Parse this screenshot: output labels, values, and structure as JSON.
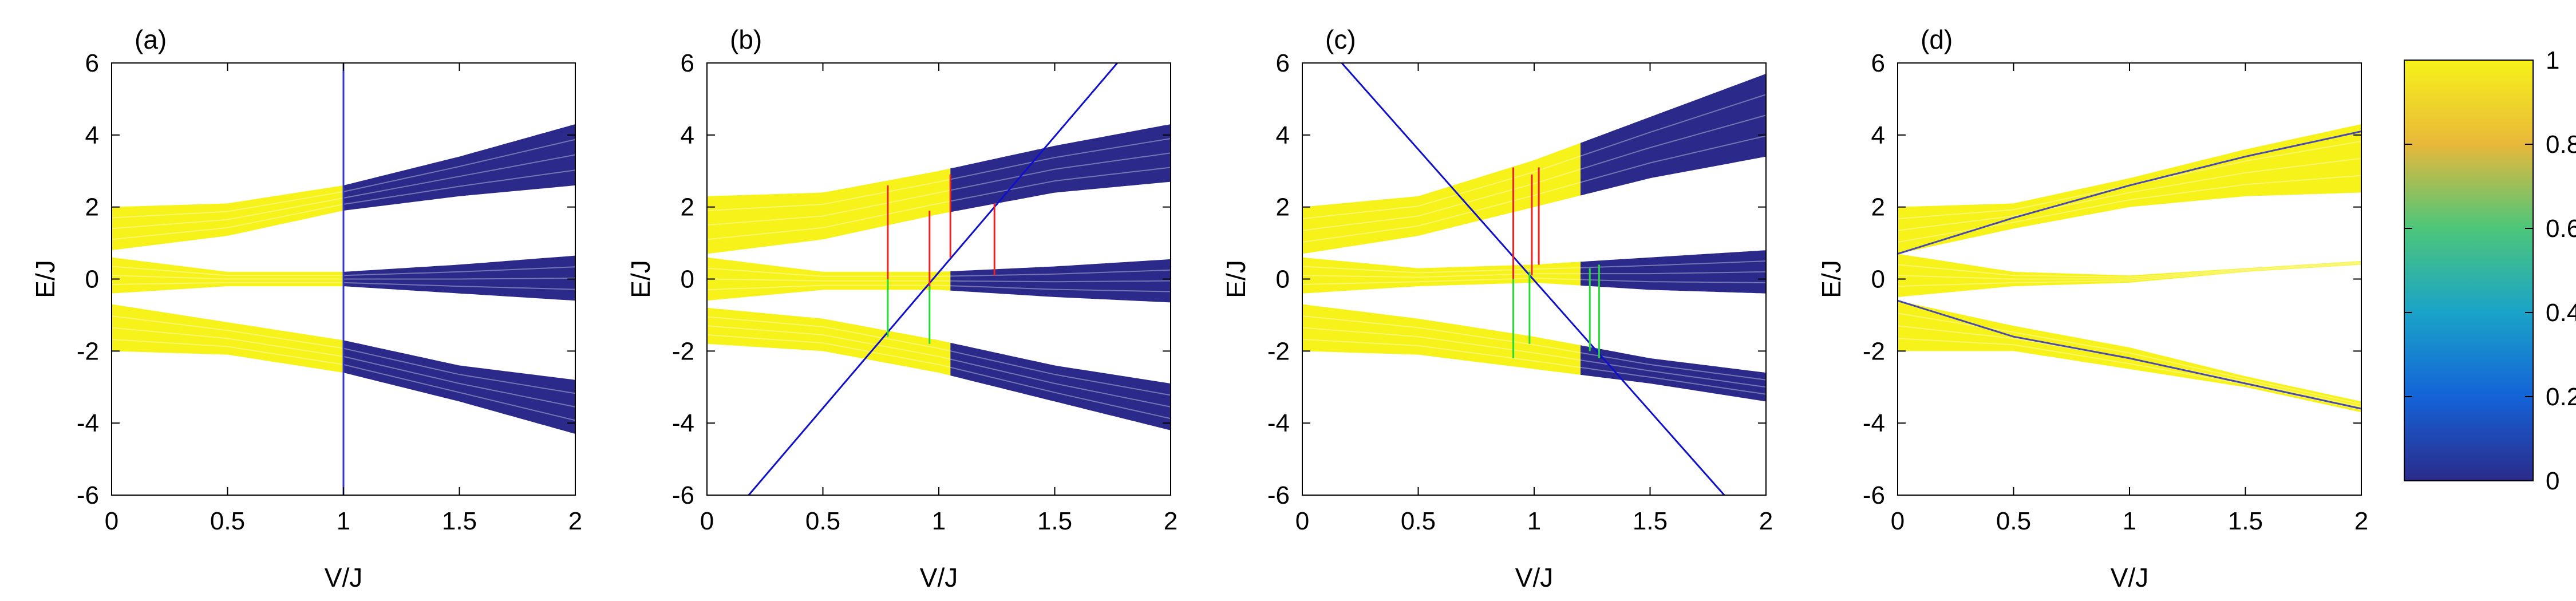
{
  "chart_data": {
    "type": "line",
    "description_units": "x in V/J, y in E/J, color = band fraction (0–1)",
    "xlabel": "V/J",
    "ylabel": "E/J",
    "xlim": [
      0,
      2
    ],
    "ylim": [
      -6,
      6
    ],
    "x_ticks": [
      "0",
      "0.5",
      "1",
      "1.5",
      "2"
    ],
    "y_ticks": [
      "-6",
      "-4",
      "-2",
      "0",
      "2",
      "4",
      "6"
    ],
    "x_tick_values": [
      0,
      0.5,
      1,
      1.5,
      2
    ],
    "y_tick_values": [
      -6,
      -4,
      -2,
      0,
      2,
      4,
      6
    ],
    "colorbar": {
      "ticks": [
        "0",
        "0.2",
        "0.4",
        "0.6",
        "0.8",
        "1"
      ],
      "tick_values": [
        0,
        0.2,
        0.4,
        0.6,
        0.8,
        1
      ],
      "range": [
        0,
        1
      ],
      "colormap": [
        "#2b2a8a",
        "#1463d8",
        "#1aa3c8",
        "#4cc67a",
        "#e8b83a",
        "#f6f21a"
      ]
    },
    "panels": [
      {
        "label": "(a)",
        "bands": [
          {
            "v": [
              0,
              0.5,
              1,
              1.5,
              2
            ],
            "upper": [
              2.0,
              2.1,
              2.6,
              3.4,
              4.3
            ],
            "lower": [
              0.8,
              1.2,
              1.9,
              2.3,
              2.6
            ]
          },
          {
            "v": [
              0,
              0.5,
              1,
              1.5,
              2
            ],
            "upper": [
              0.6,
              0.2,
              0.2,
              0.4,
              0.65
            ],
            "lower": [
              -0.4,
              -0.2,
              -0.2,
              -0.4,
              -0.6
            ]
          },
          {
            "v": [
              0,
              0.5,
              1,
              1.5,
              2
            ],
            "upper": [
              -0.7,
              -1.2,
              -1.7,
              -2.4,
              -2.8
            ],
            "lower": [
              -2.0,
              -2.1,
              -2.6,
              -3.4,
              -4.3
            ]
          }
        ],
        "yellow_until": 1.0,
        "vertical_lines": [
          {
            "x": 1.0,
            "color": "#3434c8"
          }
        ],
        "guide_lines": [],
        "red_segments": [],
        "green_segments": []
      },
      {
        "label": "(b)",
        "bands": [
          {
            "v": [
              0,
              0.5,
              1,
              1.5,
              2
            ],
            "upper": [
              2.3,
              2.4,
              3.0,
              3.7,
              4.3
            ],
            "lower": [
              0.7,
              1.1,
              1.8,
              2.4,
              2.7
            ]
          },
          {
            "v": [
              0,
              0.5,
              1,
              1.5,
              2
            ],
            "upper": [
              0.6,
              0.2,
              0.2,
              0.35,
              0.55
            ],
            "lower": [
              -0.6,
              -0.3,
              -0.3,
              -0.5,
              -0.65
            ]
          },
          {
            "v": [
              0,
              0.5,
              1,
              1.5,
              2
            ],
            "upper": [
              -0.8,
              -1.1,
              -1.7,
              -2.4,
              -2.9
            ],
            "lower": [
              -1.8,
              -2.0,
              -2.6,
              -3.4,
              -4.2
            ]
          }
        ],
        "yellow_until": 1.05,
        "vertical_lines": [],
        "guide_lines": [
          {
            "x1": 0.18,
            "y1": -6,
            "x2": 1.77,
            "y2": 6,
            "color": "#1010cc"
          }
        ],
        "red_segments": [
          {
            "x": 0.78,
            "y1": -0.3,
            "y2": 2.6
          },
          {
            "x": 0.96,
            "y1": -0.3,
            "y2": 1.9
          },
          {
            "x": 1.05,
            "y1": 0.6,
            "y2": 2.9
          },
          {
            "x": 1.24,
            "y1": 0.1,
            "y2": 2.1
          }
        ],
        "green_segments": [
          {
            "x": 0.78,
            "y1": -1.6,
            "y2": 0.0
          },
          {
            "x": 0.96,
            "y1": -1.8,
            "y2": -0.2
          }
        ]
      },
      {
        "label": "(c)",
        "bands": [
          {
            "v": [
              0,
              0.5,
              1,
              1.5,
              2
            ],
            "upper": [
              2.0,
              2.3,
              3.3,
              4.5,
              5.7
            ],
            "lower": [
              0.7,
              1.2,
              2.0,
              2.8,
              3.4
            ]
          },
          {
            "v": [
              0,
              0.5,
              1,
              1.5,
              2
            ],
            "upper": [
              0.6,
              0.3,
              0.4,
              0.6,
              0.8
            ],
            "lower": [
              -0.4,
              -0.2,
              -0.1,
              -0.3,
              -0.4
            ]
          },
          {
            "v": [
              0,
              0.5,
              1,
              1.5,
              2
            ],
            "upper": [
              -0.7,
              -1.1,
              -1.6,
              -2.2,
              -2.6
            ],
            "lower": [
              -2.0,
              -2.1,
              -2.5,
              -2.9,
              -3.4
            ]
          }
        ],
        "yellow_until": 1.2,
        "vertical_lines": [],
        "guide_lines": [
          {
            "x1": 0.17,
            "y1": 6,
            "x2": 1.82,
            "y2": -6,
            "color": "#1010cc"
          }
        ],
        "red_segments": [
          {
            "x": 0.91,
            "y1": 0.0,
            "y2": 3.1
          },
          {
            "x": 0.99,
            "y1": 0.1,
            "y2": 2.9
          },
          {
            "x": 1.02,
            "y1": 0.4,
            "y2": 3.1
          }
        ],
        "green_segments": [
          {
            "x": 0.91,
            "y1": -2.2,
            "y2": 0.0
          },
          {
            "x": 0.98,
            "y1": -1.8,
            "y2": 0.2
          },
          {
            "x": 1.24,
            "y1": -2.0,
            "y2": 0.3
          },
          {
            "x": 1.28,
            "y1": -2.2,
            "y2": 0.4
          }
        ]
      },
      {
        "label": "(d)",
        "bands": [
          {
            "v": [
              0,
              0.5,
              1,
              1.5,
              2
            ],
            "upper": [
              2.0,
              2.1,
              2.8,
              3.6,
              4.3
            ],
            "lower": [
              0.7,
              1.4,
              2.0,
              2.3,
              2.4
            ]
          },
          {
            "v": [
              0,
              0.5,
              1,
              1.5,
              2
            ],
            "upper": [
              0.7,
              0.2,
              0.1,
              0.3,
              0.5
            ],
            "lower": [
              -0.5,
              -0.2,
              -0.1,
              0.2,
              0.4
            ]
          },
          {
            "v": [
              0,
              0.5,
              1,
              1.5,
              2
            ],
            "upper": [
              -0.6,
              -1.3,
              -1.9,
              -2.7,
              -3.4
            ],
            "lower": [
              -2.0,
              -2.0,
              -2.5,
              -3.0,
              -3.7
            ]
          }
        ],
        "yellow_until": 2.0,
        "vertical_lines": [],
        "guide_lines": [],
        "red_segments": [],
        "green_segments": [],
        "thin_lines": [
          {
            "v": [
              0,
              0.5,
              1,
              1.5,
              2
            ],
            "e": [
              0.7,
              1.7,
              2.6,
              3.4,
              4.1
            ]
          },
          {
            "v": [
              0,
              0.5,
              1,
              1.5,
              2
            ],
            "e": [
              -0.6,
              -1.6,
              -2.2,
              -2.9,
              -3.6
            ]
          }
        ]
      }
    ]
  }
}
